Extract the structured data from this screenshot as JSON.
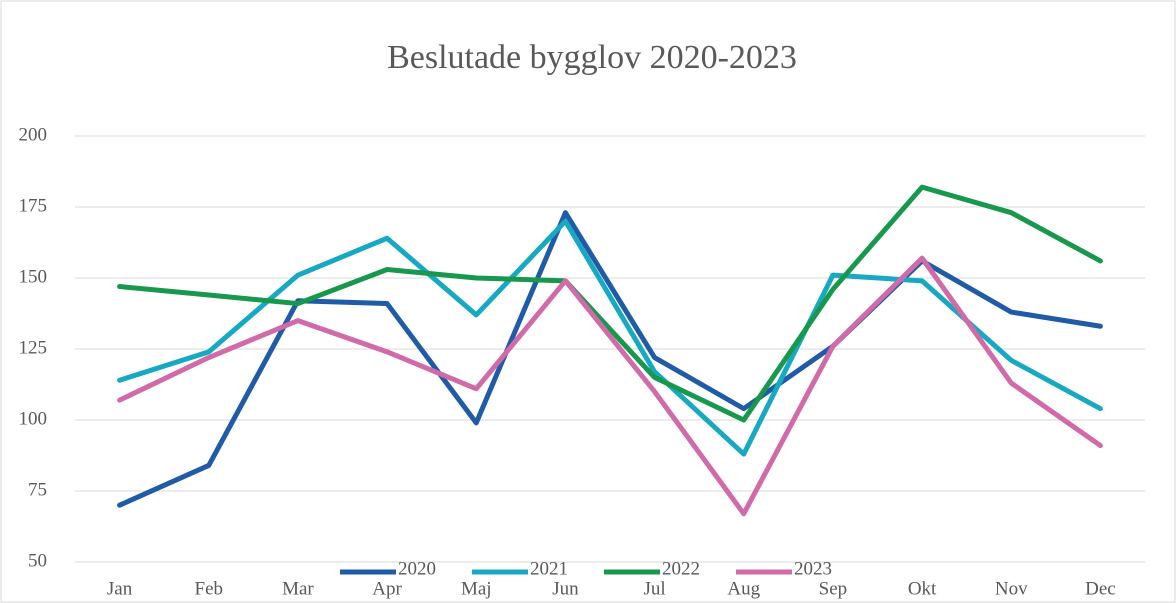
{
  "chart_data": {
    "type": "line",
    "title": "Beslutade bygglov 2020-2023",
    "categories": [
      "Jan",
      "Feb",
      "Mar",
      "Apr",
      "Maj",
      "Jun",
      "Jul",
      "Aug",
      "Sep",
      "Okt",
      "Nov",
      "Dec"
    ],
    "series": [
      {
        "name": "2020",
        "color": "#1f5ba6",
        "values": [
          70,
          84,
          142,
          141,
          99,
          173,
          122,
          104,
          126,
          156,
          138,
          133
        ]
      },
      {
        "name": "2021",
        "color": "#17a9c2",
        "values": [
          114,
          124,
          151,
          164,
          137,
          170,
          117,
          88,
          151,
          149,
          121,
          104
        ]
      },
      {
        "name": "2022",
        "color": "#17984c",
        "values": [
          147,
          144,
          141,
          153,
          150,
          149,
          115,
          100,
          146,
          182,
          173,
          156
        ]
      },
      {
        "name": "2023",
        "color": "#d06aa8",
        "values": [
          107,
          122,
          135,
          124,
          111,
          149,
          110,
          67,
          126,
          157,
          113,
          91
        ]
      }
    ],
    "ylim": [
      50,
      200
    ],
    "yticks": [
      50,
      75,
      100,
      125,
      150,
      175,
      200
    ],
    "grid": true,
    "legend": "bottom"
  }
}
